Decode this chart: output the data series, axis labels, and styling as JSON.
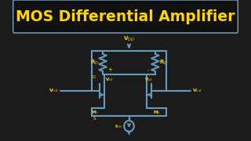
{
  "bg_color": "#1c1c1c",
  "title_box_bg": "#111111",
  "title_box_edge": "#7aaacc",
  "title_text": "MOS Differential Amplifier",
  "title_color": "#FFD700",
  "title_fontsize": 13.5,
  "lc": "#6699bb",
  "lw": 1.5,
  "lbl": "#FFD700",
  "vdd_label": "V$_{DD}$",
  "rd_left_label": "R$_D$",
  "rd_right_label": "R$_D$",
  "vo1_label": "V$_{o1}$",
  "vo2_label": "V$_{o2}$",
  "vi1_label": "V$_{in1}$",
  "vi2_label": "V$_{in2}$",
  "m1_label": "M$_1$",
  "m2_label": "M$_2$",
  "iss_label": "I$_{SS}$",
  "d_label": "D",
  "s_label": "S",
  "plus_label": "+",
  "minus_label": "-"
}
